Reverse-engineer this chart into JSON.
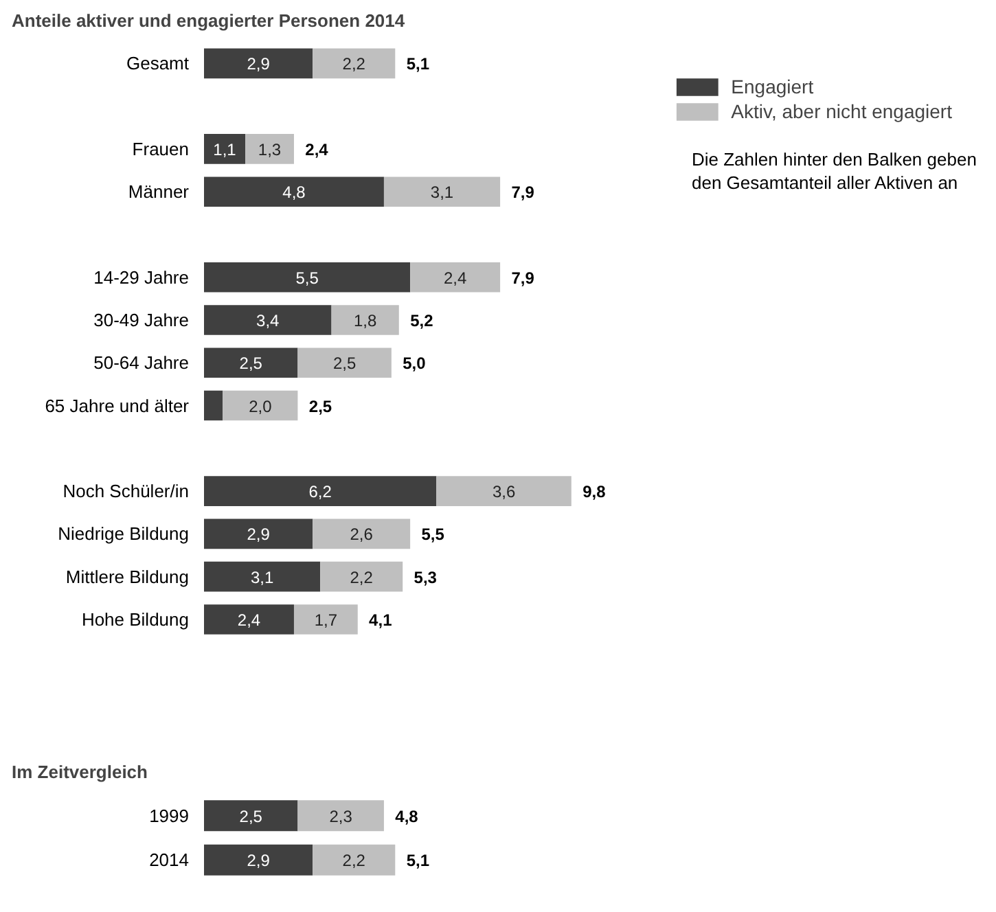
{
  "chart_data": [
    {
      "type": "bar",
      "orientation": "horizontal",
      "stacked": true,
      "title": "Anteile aktiver und engagierter Personen 2014",
      "categories": [
        "Gesamt",
        null,
        "Frauen",
        "Männer",
        null,
        "14-29 Jahre",
        "30-49 Jahre",
        "50-64 Jahre",
        "65 Jahre und älter",
        null,
        "Noch Schüler/in",
        "Niedrige Bildung",
        "Mittlere Bildung",
        "Hohe Bildung"
      ],
      "series": [
        {
          "name": "Engagiert",
          "color": "#404040",
          "values": [
            2.9,
            null,
            1.1,
            4.8,
            null,
            5.5,
            3.4,
            2.5,
            0.5,
            null,
            6.2,
            2.9,
            3.1,
            2.4
          ],
          "value_labels": [
            "2,9",
            null,
            "1,1",
            "4,8",
            null,
            "5,5",
            "3,4",
            "2,5",
            null,
            null,
            "6,2",
            "2,9",
            "3,1",
            "2,4"
          ]
        },
        {
          "name": "Aktiv, aber nicht engagiert",
          "color": "#bfbfbf",
          "values": [
            2.2,
            null,
            1.3,
            3.1,
            null,
            2.4,
            1.8,
            2.5,
            2.0,
            null,
            3.6,
            2.6,
            2.2,
            1.7
          ],
          "value_labels": [
            "2,2",
            null,
            "1,3",
            "3,1",
            null,
            "2,4",
            "1,8",
            "2,5",
            "2,0",
            null,
            "3,6",
            "2,6",
            "2,2",
            "1,7"
          ]
        }
      ],
      "totals": [
        "5,1",
        null,
        "2,4",
        "7,9",
        null,
        "7,9",
        "5,2",
        "5,0",
        "2,5",
        null,
        "9,8",
        "5,5",
        "5,3",
        "4,1"
      ],
      "legend": "top right",
      "annotations": [
        "Die Zahlen hinter den Balken geben den Gesamtanteil aller Aktiven an"
      ]
    },
    {
      "type": "bar",
      "orientation": "horizontal",
      "stacked": true,
      "title": "Im Zeitvergleich",
      "categories": [
        "1999",
        "2014"
      ],
      "series": [
        {
          "color": "#404040",
          "values": [
            2.5,
            2.9
          ],
          "value_labels": [
            "2,5",
            "2,9"
          ]
        },
        {
          "color": "#bfbfbf",
          "values": [
            2.3,
            2.2
          ],
          "value_labels": [
            "2,3",
            "2,2"
          ]
        }
      ],
      "totals": [
        "4,8",
        "5,1"
      ]
    }
  ]
}
